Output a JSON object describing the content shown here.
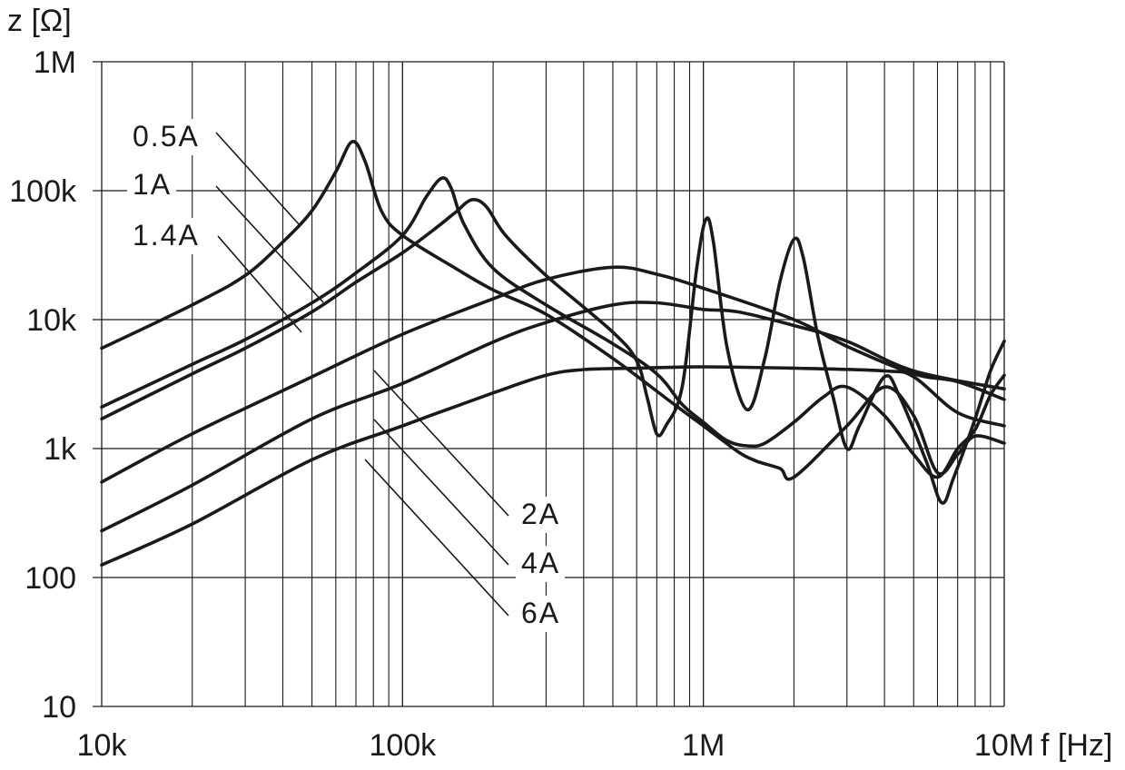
{
  "chart_data": {
    "type": "line",
    "x_scale": "log",
    "y_scale": "log",
    "xlim": [
      10000,
      10000000
    ],
    "ylim": [
      10,
      1000000
    ],
    "grid": true,
    "xlabel": "f [Hz]",
    "ylabel": "z [Ω]",
    "x_ticks": [
      {
        "value": 10000,
        "label": "10k"
      },
      {
        "value": 100000,
        "label": "100k"
      },
      {
        "value": 1000000,
        "label": "1M"
      },
      {
        "value": 10000000,
        "label": "10M"
      }
    ],
    "y_ticks": [
      {
        "value": 10,
        "label": "10"
      },
      {
        "value": 100,
        "label": "100"
      },
      {
        "value": 1000,
        "label": "1k"
      },
      {
        "value": 10000,
        "label": "10k"
      },
      {
        "value": 100000,
        "label": "100k"
      },
      {
        "value": 1000000,
        "label": "1M"
      }
    ],
    "series": [
      {
        "name": "0.5A",
        "color": "#1a1a1a",
        "points": [
          [
            10000,
            6000
          ],
          [
            20000,
            13000
          ],
          [
            30000,
            22000
          ],
          [
            40000,
            40000
          ],
          [
            50000,
            70000
          ],
          [
            60000,
            140000
          ],
          [
            68000,
            240000
          ],
          [
            75000,
            170000
          ],
          [
            85000,
            70000
          ],
          [
            100000,
            45000
          ],
          [
            150000,
            25000
          ],
          [
            200000,
            17000
          ],
          [
            300000,
            11000
          ],
          [
            500000,
            5000
          ],
          [
            800000,
            2200
          ],
          [
            1000000,
            1500
          ],
          [
            1300000,
            950
          ],
          [
            1500000,
            800
          ],
          [
            1800000,
            700
          ],
          [
            2000000,
            600
          ],
          [
            3000000,
            1500
          ],
          [
            4000000,
            3000
          ],
          [
            5000000,
            1800
          ],
          [
            6000000,
            650
          ],
          [
            7000000,
            900
          ],
          [
            8000000,
            1250
          ],
          [
            10000000,
            1100
          ]
        ]
      },
      {
        "name": "1A",
        "color": "#1a1a1a",
        "points": [
          [
            10000,
            2100
          ],
          [
            20000,
            4500
          ],
          [
            30000,
            7000
          ],
          [
            50000,
            13500
          ],
          [
            70000,
            23000
          ],
          [
            100000,
            45000
          ],
          [
            120000,
            90000
          ],
          [
            135000,
            125000
          ],
          [
            145000,
            105000
          ],
          [
            160000,
            55000
          ],
          [
            200000,
            25000
          ],
          [
            300000,
            13000
          ],
          [
            500000,
            6500
          ],
          [
            700000,
            3800
          ],
          [
            850000,
            2200
          ],
          [
            1000000,
            1600
          ],
          [
            1200000,
            1150
          ],
          [
            1400000,
            1050
          ],
          [
            1600000,
            1100
          ],
          [
            2000000,
            1600
          ],
          [
            2500000,
            2500
          ],
          [
            3000000,
            3000
          ],
          [
            4000000,
            1800
          ],
          [
            5000000,
            900
          ],
          [
            6000000,
            600
          ],
          [
            7000000,
            1000
          ],
          [
            8000000,
            1400
          ],
          [
            9000000,
            2600
          ],
          [
            10000000,
            3700
          ]
        ]
      },
      {
        "name": "1.4A",
        "color": "#1a1a1a",
        "points": [
          [
            10000,
            1700
          ],
          [
            20000,
            3800
          ],
          [
            30000,
            6000
          ],
          [
            50000,
            11500
          ],
          [
            70000,
            19500
          ],
          [
            100000,
            33000
          ],
          [
            130000,
            52000
          ],
          [
            150000,
            68000
          ],
          [
            170000,
            85000
          ],
          [
            190000,
            75000
          ],
          [
            220000,
            45000
          ],
          [
            300000,
            22000
          ],
          [
            500000,
            8000
          ],
          [
            600000,
            4800
          ],
          [
            650000,
            2500
          ],
          [
            700000,
            1300
          ],
          [
            750000,
            1500
          ],
          [
            850000,
            3000
          ],
          [
            950000,
            25000
          ],
          [
            1020000,
            60000
          ],
          [
            1080000,
            40000
          ],
          [
            1200000,
            6000
          ],
          [
            1400000,
            2000
          ],
          [
            1600000,
            5000
          ],
          [
            1800000,
            20000
          ],
          [
            2000000,
            42000
          ],
          [
            2150000,
            30000
          ],
          [
            2400000,
            7500
          ],
          [
            2700000,
            2500
          ],
          [
            3000000,
            1000
          ],
          [
            3300000,
            1500
          ],
          [
            4000000,
            3600
          ],
          [
            4500000,
            2500
          ],
          [
            5500000,
            800
          ],
          [
            6200000,
            380
          ],
          [
            6800000,
            600
          ],
          [
            8000000,
            1700
          ],
          [
            9000000,
            4000
          ],
          [
            10000000,
            6800
          ]
        ]
      },
      {
        "name": "2A",
        "color": "#1a1a1a",
        "points": [
          [
            10000,
            550
          ],
          [
            20000,
            1300
          ],
          [
            50000,
            3600
          ],
          [
            100000,
            7700
          ],
          [
            200000,
            14500
          ],
          [
            300000,
            20500
          ],
          [
            500000,
            25500
          ],
          [
            700000,
            22500
          ],
          [
            1000000,
            17500
          ],
          [
            2000000,
            10000
          ],
          [
            3000000,
            6200
          ],
          [
            5000000,
            3800
          ],
          [
            7000000,
            3300
          ],
          [
            10000000,
            2400
          ]
        ]
      },
      {
        "name": "4A",
        "color": "#1a1a1a",
        "points": [
          [
            10000,
            230
          ],
          [
            20000,
            520
          ],
          [
            50000,
            1700
          ],
          [
            100000,
            3200
          ],
          [
            200000,
            6700
          ],
          [
            300000,
            9500
          ],
          [
            500000,
            13000
          ],
          [
            700000,
            13500
          ],
          [
            1000000,
            12000
          ],
          [
            1300000,
            11500
          ],
          [
            2000000,
            9000
          ],
          [
            3000000,
            6800
          ],
          [
            5000000,
            4000
          ],
          [
            10000000,
            2900
          ]
        ]
      },
      {
        "name": "6A",
        "color": "#1a1a1a",
        "points": [
          [
            10000,
            125
          ],
          [
            20000,
            260
          ],
          [
            50000,
            820
          ],
          [
            100000,
            1500
          ],
          [
            200000,
            2700
          ],
          [
            300000,
            3700
          ],
          [
            400000,
            4100
          ],
          [
            600000,
            4200
          ],
          [
            1000000,
            4300
          ],
          [
            2000000,
            4200
          ],
          [
            4000000,
            4000
          ],
          [
            5000000,
            3600
          ],
          [
            7000000,
            1900
          ],
          [
            10000000,
            1500
          ]
        ]
      }
    ],
    "annotations": [
      {
        "text": "0.5A",
        "label_x": 230,
        "label_y": 161
      },
      {
        "text": "1A",
        "label_x": 193,
        "label_y": 214
      },
      {
        "text": "1.4A",
        "label_x": 230,
        "label_y": 270
      }
    ]
  }
}
